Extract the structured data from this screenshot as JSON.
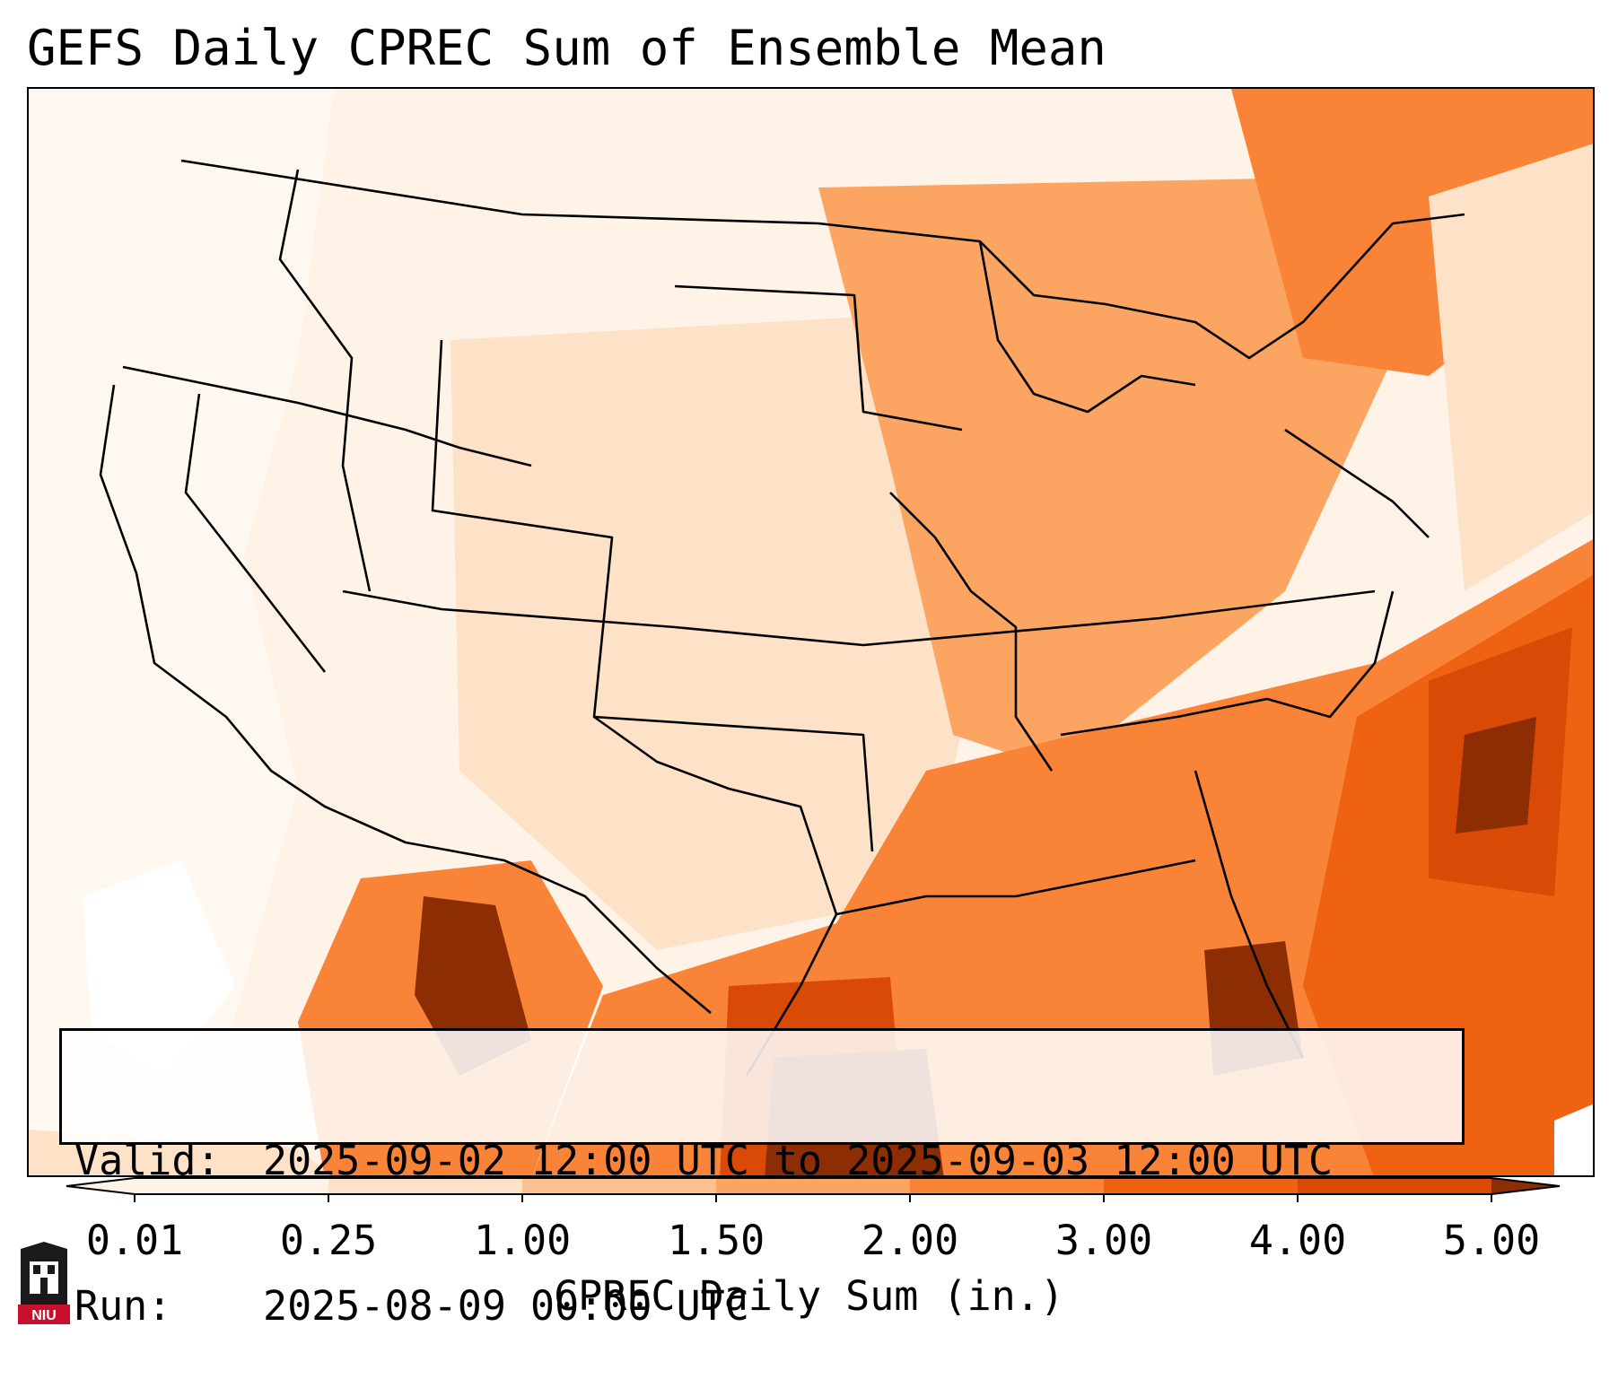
{
  "title": "GEFS Daily CPREC Sum of Ensemble Mean",
  "info": {
    "valid_label": "Valid:",
    "valid_value": "2025-09-02 12:00 UTC to 2025-09-03 12:00 UTC",
    "run_label": "Run:",
    "run_value": "2025-08-09 00:00 UTC"
  },
  "colorbar": {
    "title": "CPREC Daily Sum (in.)",
    "ticks": [
      "0.01",
      "0.25",
      "1.00",
      "1.50",
      "2.00",
      "3.00",
      "4.00",
      "5.00"
    ],
    "colors": [
      "#fff3e8",
      "#fde2c8",
      "#fdc18f",
      "#fca461",
      "#f98437",
      "#ef6212",
      "#d84a05",
      "#8c2d04"
    ]
  },
  "logo": {
    "text": "NIU"
  }
}
